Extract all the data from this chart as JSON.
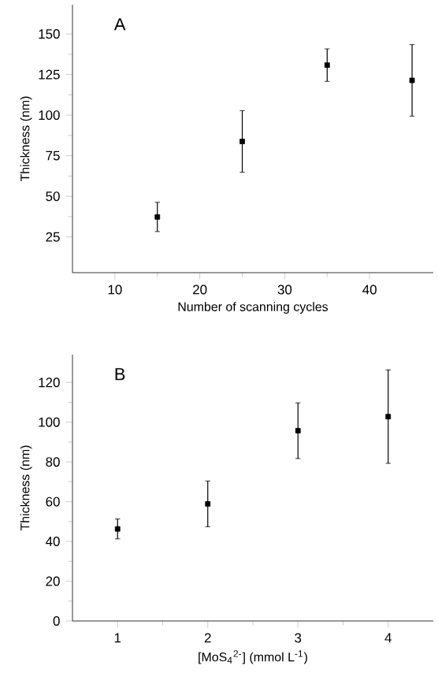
{
  "chart_data": [
    {
      "type": "scatter",
      "xlabel": "Number of scanning cycles",
      "ylabel": "Thickness (nm)",
      "annotations": [
        "A"
      ],
      "marker": "square",
      "color": "#000000",
      "x": [
        15,
        25,
        35,
        45
      ],
      "values": [
        37.3,
        83.8,
        130.8,
        121.4
      ],
      "errors": [
        9,
        19,
        10,
        22
      ],
      "xlim": [
        5,
        47.5
      ],
      "ylim": [
        3,
        168
      ],
      "xticks": [
        10,
        20,
        30,
        40
      ],
      "yticks": [
        25,
        50,
        75,
        100,
        125,
        150
      ]
    },
    {
      "type": "scatter",
      "xlabel": "[MoS$_{4}$$^{2-}$] (mmol L$^{-1}$)",
      "ylabel": "Thickness (nm)",
      "annotations": [
        "B"
      ],
      "marker": "square",
      "color": "#000000",
      "x": [
        1,
        2,
        3,
        4
      ],
      "values": [
        46.3,
        58.9,
        95.7,
        102.8
      ],
      "errors": [
        5,
        11.5,
        14,
        23.5
      ],
      "xlim": [
        0.5,
        4.5
      ],
      "ylim": [
        0,
        134
      ],
      "xticks": [
        1,
        2,
        3,
        4
      ],
      "yticks": [
        0,
        20,
        40,
        60,
        80,
        100,
        120
      ]
    }
  ]
}
